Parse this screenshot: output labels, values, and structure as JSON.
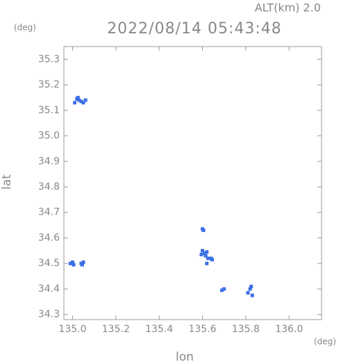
{
  "chart_data": {
    "type": "scatter",
    "title": "2022/08/14 05:43:48",
    "subtitle": "ALT(km) 2.0",
    "x_label": "lon",
    "y_label": "lat",
    "x_unit": "(deg)",
    "y_unit": "(deg)",
    "color": "#3b6fe6",
    "x": [
      135.01,
      135.02,
      135.025,
      135.03,
      135.04,
      135.05,
      135.06,
      134.99,
      135.0,
      135.005,
      135.04,
      135.05,
      135.045,
      135.6,
      135.605,
      135.6,
      135.61,
      135.62,
      135.615,
      135.625,
      135.64,
      135.645,
      135.62,
      135.595,
      135.69,
      135.7,
      135.81,
      135.82,
      135.83,
      135.825
    ],
    "values": [
      35.13,
      35.145,
      35.15,
      35.14,
      35.135,
      35.13,
      35.14,
      34.5,
      34.505,
      34.495,
      34.5,
      34.505,
      34.495,
      34.635,
      34.63,
      34.55,
      34.54,
      34.545,
      34.53,
      34.52,
      34.52,
      34.515,
      34.5,
      34.535,
      34.395,
      34.4,
      34.385,
      34.4,
      34.375,
      34.41
    ],
    "xlim": [
      134.96,
      136.15
    ],
    "ylim": [
      34.28,
      35.35
    ],
    "xticks": [
      {
        "value": 135,
        "label": "135.0"
      },
      135.2,
      135.4,
      135.6,
      135.8,
      {
        "value": 136,
        "label": "136.0"
      }
    ],
    "yticks": [
      34.3,
      34.4,
      34.5,
      34.6,
      34.7,
      34.8,
      34.9,
      {
        "value": 35,
        "label": "35.0"
      },
      35.1,
      35.2,
      35.3
    ]
  }
}
